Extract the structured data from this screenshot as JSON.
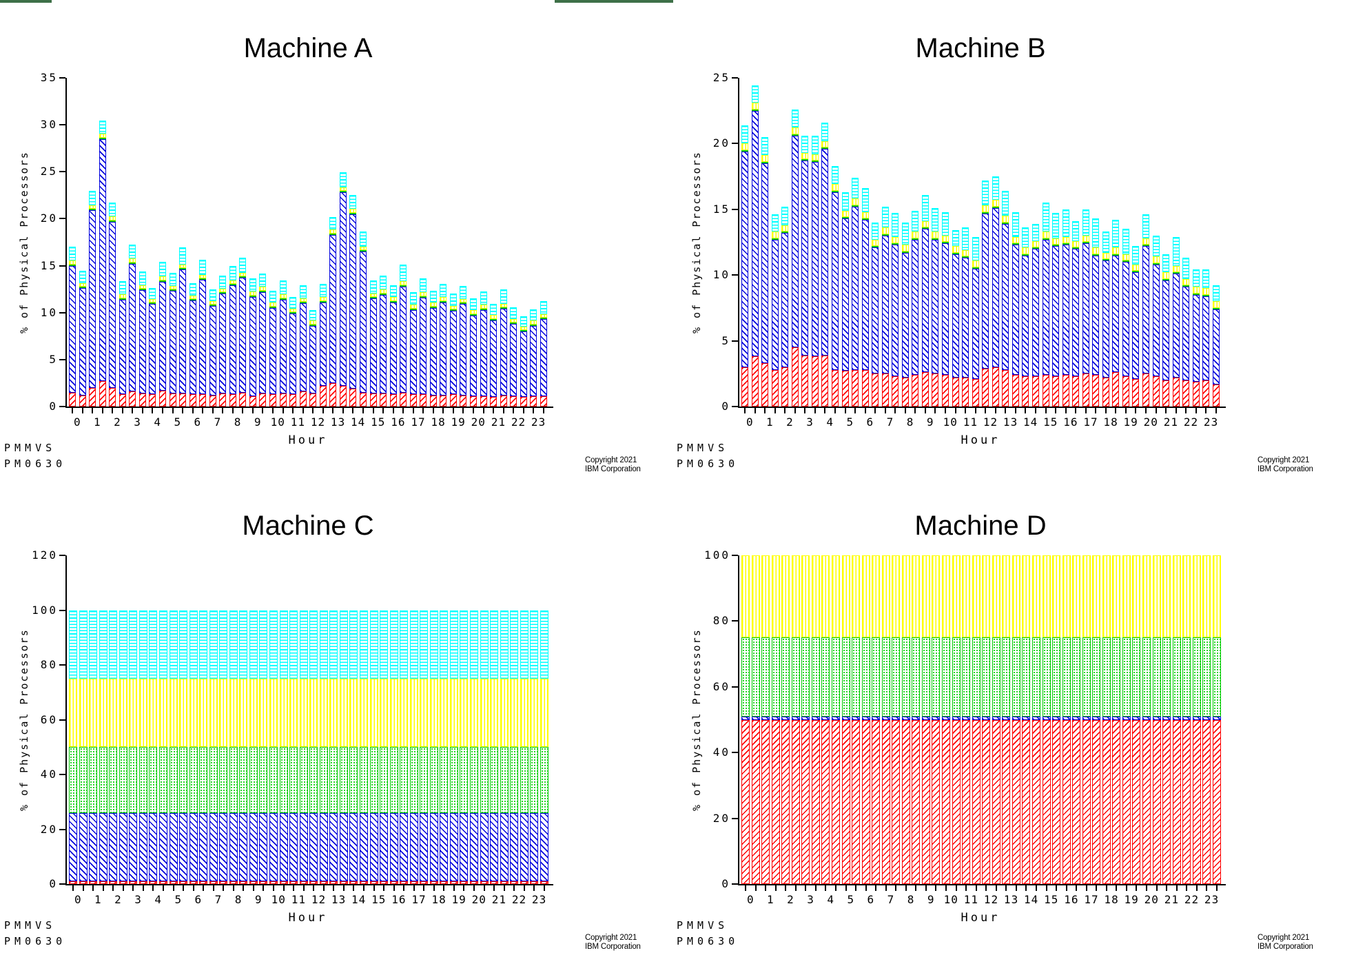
{
  "page_header": {
    "cropped_bars": [
      {
        "name": "cropped-bar-left",
        "x": 0,
        "width": 75,
        "color": "#3E7048"
      },
      {
        "name": "cropped-bar-right",
        "x": 805,
        "width": 172,
        "color": "#3E7048"
      }
    ]
  },
  "footer": {
    "code_line1": "PMMVS",
    "code_line2": "PM0630",
    "copyright_line1": "Copyright 2021",
    "copyright_line2": "IBM Corporation"
  },
  "hours": [
    "0",
    "1",
    "2",
    "3",
    "4",
    "5",
    "6",
    "7",
    "8",
    "9",
    "10",
    "11",
    "12",
    "13",
    "14",
    "15",
    "16",
    "17",
    "18",
    "19",
    "20",
    "21",
    "22",
    "23"
  ],
  "colors": {
    "red": "#FF0000",
    "blue": "#0000DD",
    "green": "#00CC00",
    "yellow": "#FFFF00",
    "cyan": "#00FFFF",
    "axis": "#000000"
  },
  "chart_data": [
    {
      "type": "bar",
      "stacked": true,
      "title": "Machine A",
      "ylabel": "% of Physical Processors",
      "xlabel": "Hour",
      "ylim": [
        0,
        35
      ],
      "yticks": [
        0,
        5,
        10,
        15,
        20,
        25,
        30,
        35
      ],
      "bar_count": 48,
      "bars_per_hour": 2,
      "grid": false,
      "legend": "cropped-off-top",
      "series": [
        {
          "name": "red",
          "color": "#FF0000",
          "hatch": "diagonal-forward",
          "values": [
            1.5,
            1.2,
            2.0,
            2.7,
            2.0,
            1.3,
            1.6,
            1.4,
            1.3,
            1.7,
            1.4,
            1.4,
            1.3,
            1.3,
            1.2,
            1.4,
            1.3,
            1.5,
            1.1,
            1.4,
            1.3,
            1.4,
            1.3,
            1.6,
            1.4,
            2.2,
            2.5,
            2.2,
            1.9,
            1.5,
            1.4,
            1.4,
            1.3,
            1.5,
            1.3,
            1.3,
            1.2,
            1.2,
            1.3,
            1.2,
            1.1,
            1.1,
            1.0,
            1.2,
            1.1,
            1.0,
            1.1,
            1.1
          ]
        },
        {
          "name": "blue",
          "color": "#0000DD",
          "hatch": "diagonal-back",
          "values": [
            13.5,
            11.4,
            18.9,
            25.8,
            17.7,
            10.1,
            13.6,
            11.0,
            9.6,
            11.6,
            10.9,
            13.2,
            10.0,
            12.2,
            9.5,
            10.6,
            11.6,
            12.2,
            10.6,
            10.8,
            9.2,
            10.0,
            8.6,
            9.4,
            7.2,
            8.9,
            15.8,
            20.6,
            18.6,
            15.0,
            10.1,
            10.5,
            9.8,
            11.3,
            9.0,
            10.3,
            9.3,
            9.9,
            8.9,
            9.7,
            8.6,
            9.2,
            8.2,
            9.2,
            7.7,
            7.0,
            7.5,
            8.2
          ]
        },
        {
          "name": "green",
          "color": "#00CC00",
          "hatch": "solid",
          "uniform_value": 0.1
        },
        {
          "name": "yellow",
          "color": "#FFFF00",
          "hatch": "vertical",
          "uniform_value": 0.4
        },
        {
          "name": "cyan",
          "color": "#00FFFF",
          "hatch": "horizontal",
          "values": [
            1.5,
            1.3,
            1.5,
            1.4,
            1.5,
            1.4,
            1.5,
            1.4,
            1.2,
            1.6,
            1.4,
            1.8,
            1.3,
            1.6,
            1.2,
            1.4,
            1.5,
            1.6,
            1.4,
            1.4,
            1.3,
            1.5,
            1.2,
            1.4,
            1.1,
            1.4,
            1.3,
            1.6,
            1.5,
            1.6,
            1.4,
            1.5,
            1.3,
            1.8,
            1.3,
            1.5,
            1.3,
            1.4,
            1.3,
            1.4,
            1.3,
            1.4,
            1.2,
            1.5,
            1.2,
            1.1,
            1.2,
            1.4
          ]
        }
      ]
    },
    {
      "type": "bar",
      "stacked": true,
      "title": "Machine B",
      "ylabel": "% of Physical Processors",
      "xlabel": "Hour",
      "ylim": [
        0,
        25
      ],
      "yticks": [
        0,
        5,
        10,
        15,
        20,
        25
      ],
      "bar_count": 48,
      "bars_per_hour": 2,
      "grid": false,
      "legend": "cropped-off-top",
      "series": [
        {
          "name": "red",
          "color": "#FF0000",
          "hatch": "diagonal-forward",
          "values": [
            3.0,
            3.8,
            3.3,
            2.8,
            3.0,
            4.5,
            3.9,
            3.8,
            3.9,
            2.8,
            2.7,
            2.8,
            2.8,
            2.5,
            2.5,
            2.3,
            2.2,
            2.4,
            2.6,
            2.5,
            2.4,
            2.2,
            2.2,
            2.1,
            2.9,
            3.0,
            2.8,
            2.4,
            2.3,
            2.3,
            2.4,
            2.3,
            2.4,
            2.3,
            2.5,
            2.4,
            2.2,
            2.6,
            2.3,
            2.1,
            2.5,
            2.3,
            2.0,
            2.2,
            2.0,
            1.9,
            2.0,
            1.7
          ]
        },
        {
          "name": "blue",
          "color": "#0000DD",
          "hatch": "diagonal-back",
          "values": [
            16.4,
            18.7,
            15.2,
            9.9,
            10.2,
            16.1,
            14.8,
            14.8,
            15.7,
            13.5,
            11.6,
            12.4,
            11.4,
            9.6,
            10.5,
            10.0,
            9.5,
            10.3,
            10.9,
            10.2,
            10.0,
            9.4,
            9.1,
            8.4,
            11.8,
            12.1,
            11.1,
            9.9,
            9.2,
            9.7,
            10.3,
            9.9,
            9.9,
            9.7,
            9.9,
            9.1,
            8.9,
            8.9,
            8.7,
            8.1,
            9.7,
            8.5,
            7.6,
            7.9,
            7.1,
            6.6,
            6.4,
            5.7
          ]
        },
        {
          "name": "green",
          "color": "#00CC00",
          "hatch": "solid",
          "uniform_value": 0.1
        },
        {
          "name": "yellow",
          "color": "#FFFF00",
          "hatch": "vertical",
          "uniform_value": 0.5
        },
        {
          "name": "cyan",
          "color": "#00FFFF",
          "hatch": "horizontal",
          "values": [
            1.4,
            1.3,
            1.4,
            1.3,
            1.4,
            1.4,
            1.3,
            1.4,
            1.4,
            1.4,
            1.4,
            1.6,
            1.8,
            1.3,
            1.6,
            1.8,
            1.7,
            1.6,
            2.0,
            1.8,
            1.8,
            1.2,
            1.7,
            1.8,
            1.9,
            1.8,
            1.9,
            1.9,
            1.5,
            1.3,
            2.2,
            1.9,
            2.1,
            1.5,
            2.0,
            2.2,
            1.6,
            2.1,
            1.9,
            1.4,
            1.8,
            1.6,
            1.4,
            2.2,
            1.6,
            1.3,
            1.4,
            1.2
          ]
        }
      ]
    },
    {
      "type": "bar",
      "stacked": true,
      "title": "Machine C",
      "ylabel": "% of Physical Processors",
      "xlabel": "Hour",
      "ylim": [
        0,
        120
      ],
      "yticks": [
        0,
        20,
        40,
        60,
        80,
        100,
        120
      ],
      "bar_count": 48,
      "bars_per_hour": 2,
      "grid": false,
      "legend": "cropped-off-top",
      "series": [
        {
          "name": "red",
          "color": "#FF0000",
          "hatch": "diagonal-forward",
          "uniform_value": 1.0
        },
        {
          "name": "blue",
          "color": "#0000DD",
          "hatch": "diagonal-back",
          "uniform_value": 25.0
        },
        {
          "name": "green",
          "color": "#00CC00",
          "hatch": "dots",
          "uniform_value": 24.0
        },
        {
          "name": "yellow",
          "color": "#FFFF00",
          "hatch": "vertical",
          "uniform_value": 25.0
        },
        {
          "name": "cyan",
          "color": "#00FFFF",
          "hatch": "horizontal",
          "uniform_value": 25.0
        }
      ]
    },
    {
      "type": "bar",
      "stacked": true,
      "title": "Machine D",
      "ylabel": "% of Physical Processors",
      "xlabel": "Hour",
      "ylim": [
        0,
        100
      ],
      "yticks": [
        0,
        20,
        40,
        60,
        80,
        100
      ],
      "bar_count": 48,
      "bars_per_hour": 2,
      "grid": false,
      "legend": "cropped-off-top",
      "series": [
        {
          "name": "red",
          "color": "#FF0000",
          "hatch": "diagonal-forward",
          "uniform_value": 50.0
        },
        {
          "name": "blue",
          "color": "#0000DD",
          "hatch": "diagonal-back",
          "uniform_value": 1.0
        },
        {
          "name": "green",
          "color": "#00CC00",
          "hatch": "dots",
          "uniform_value": 24.0
        },
        {
          "name": "yellow",
          "color": "#FFFF00",
          "hatch": "vertical",
          "uniform_value": 25.0
        }
      ]
    }
  ]
}
